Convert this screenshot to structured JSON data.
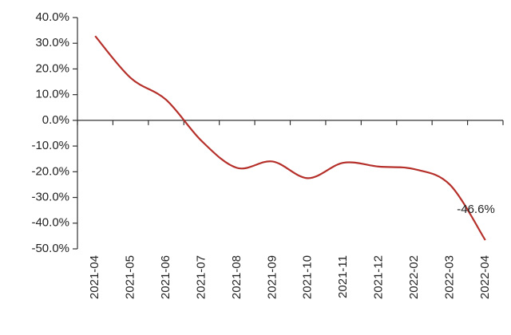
{
  "chart_data": {
    "type": "line",
    "categories": [
      "2021-04",
      "2021-05",
      "2021-06",
      "2021-07",
      "2021-08",
      "2021-09",
      "2021-10",
      "2021-11",
      "2021-12",
      "2022-02",
      "2022-03",
      "2022-04"
    ],
    "values": [
      32.8,
      16.5,
      8,
      -8,
      -18.5,
      -16,
      -22.5,
      -16.5,
      -18,
      -19,
      -25,
      -46.6
    ],
    "value_labels": [
      null,
      null,
      null,
      null,
      null,
      null,
      null,
      null,
      null,
      null,
      null,
      "-46.6%"
    ],
    "color": "#b5302a",
    "ylim": [
      -50,
      40
    ],
    "yticks": [
      {
        "value": -50,
        "label": "-50.0%"
      },
      {
        "value": -40,
        "label": "-40.0%"
      },
      {
        "value": -30,
        "label": "-30.0%"
      },
      {
        "value": -20,
        "label": "-20.0%"
      },
      {
        "value": -10,
        "label": "-10.0%"
      },
      {
        "value": 0,
        "label": "0.0%"
      },
      {
        "value": 10,
        "label": "10.0%"
      },
      {
        "value": 20,
        "label": "20.0%"
      },
      {
        "value": 30,
        "label": "30.0%"
      },
      {
        "value": 40,
        "label": "40.0%"
      }
    ],
    "grid": false
  }
}
